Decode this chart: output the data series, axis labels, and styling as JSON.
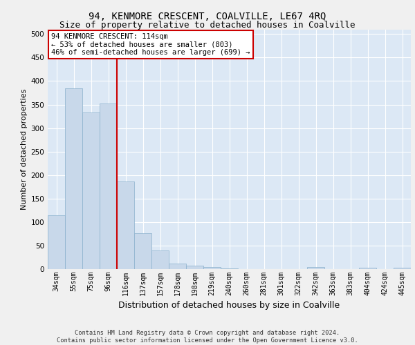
{
  "title": "94, KENMORE CRESCENT, COALVILLE, LE67 4RQ",
  "subtitle": "Size of property relative to detached houses in Coalville",
  "xlabel": "Distribution of detached houses by size in Coalville",
  "ylabel": "Number of detached properties",
  "categories": [
    "34sqm",
    "55sqm",
    "75sqm",
    "96sqm",
    "116sqm",
    "137sqm",
    "157sqm",
    "178sqm",
    "198sqm",
    "219sqm",
    "240sqm",
    "260sqm",
    "281sqm",
    "301sqm",
    "322sqm",
    "342sqm",
    "363sqm",
    "383sqm",
    "404sqm",
    "424sqm",
    "445sqm"
  ],
  "values": [
    114,
    384,
    333,
    352,
    187,
    76,
    39,
    12,
    7,
    5,
    2,
    0,
    0,
    0,
    0,
    4,
    0,
    0,
    3,
    0,
    3
  ],
  "bar_color": "#c8d8ea",
  "bar_edge_color": "#8ab0cc",
  "vline_color": "#cc0000",
  "vline_index": 3.5,
  "annotation_text": "94 KENMORE CRESCENT: 114sqm\n← 53% of detached houses are smaller (803)\n46% of semi-detached houses are larger (699) →",
  "annotation_box_color": "#ffffff",
  "annotation_box_edge": "#cc0000",
  "ylim": [
    0,
    510
  ],
  "yticks": [
    0,
    50,
    100,
    150,
    200,
    250,
    300,
    350,
    400,
    450,
    500
  ],
  "plot_bg": "#dce8f5",
  "fig_bg": "#f0f0f0",
  "grid_color": "#ffffff",
  "footer": "Contains HM Land Registry data © Crown copyright and database right 2024.\nContains public sector information licensed under the Open Government Licence v3.0.",
  "title_fontsize": 10,
  "subtitle_fontsize": 9,
  "ylabel_fontsize": 8,
  "xlabel_fontsize": 9,
  "tick_fontsize": 7,
  "annot_fontsize": 7.5
}
